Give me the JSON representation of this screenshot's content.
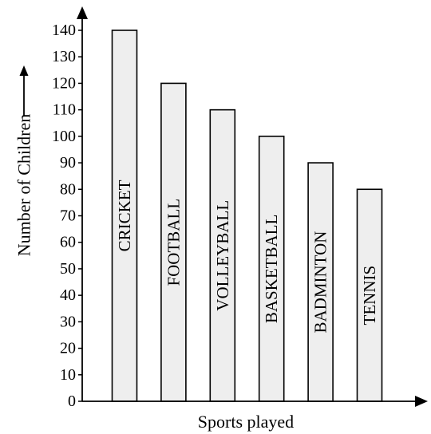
{
  "chart_data": {
    "type": "bar",
    "categories": [
      "CRICKET",
      "FOOTBALL",
      "VOLLEYBALL",
      "BASKETBALL",
      "BADMINTON",
      "TENNIS"
    ],
    "values": [
      140,
      120,
      110,
      100,
      90,
      80
    ],
    "xlabel": "Sports played",
    "ylabel": "Number of Children",
    "ylim": [
      0,
      140
    ],
    "yticks": [
      0,
      10,
      20,
      30,
      40,
      50,
      60,
      70,
      80,
      90,
      100,
      110,
      120,
      130,
      140
    ],
    "category_labels_inside_bars": true,
    "grid": false,
    "legend": "none",
    "colors": {
      "bar_fill": "#eeeeee",
      "bar_stroke": "#000000"
    }
  }
}
